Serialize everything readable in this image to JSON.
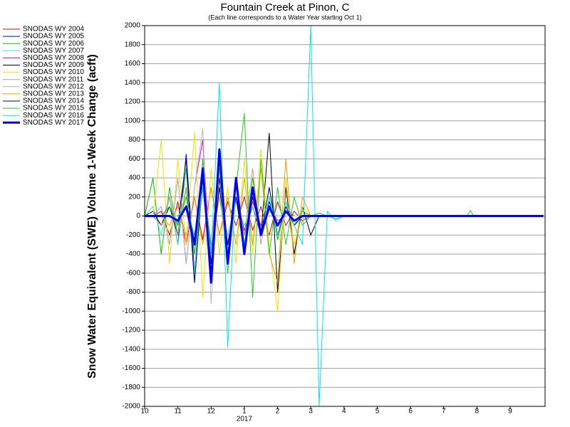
{
  "chart_data": {
    "type": "line",
    "title": "Fountain Creek at Pinon, C",
    "subtitle": "(Each line corresponds to a Water Year starting Oct 1)",
    "y_label": "Snow Water Equivalent (SWE) Volume 1-Week Change (acft)",
    "x_sublabel": "2017",
    "grid": true,
    "legend": "left",
    "x": [
      0,
      0.25,
      0.5,
      0.75,
      1,
      1.25,
      1.5,
      1.75,
      2,
      2.25,
      2.5,
      2.75,
      3,
      3.25,
      3.5,
      3.75,
      4,
      4.25,
      4.5,
      4.75,
      5,
      5.25,
      5.5,
      5.75,
      6,
      7,
      8,
      9,
      9.7,
      9.8,
      9.9,
      12
    ],
    "xlim": [
      0,
      12.05
    ],
    "xticks": [
      {
        "value": 0,
        "label": "10"
      },
      {
        "value": 1,
        "label": "11"
      },
      {
        "value": 2,
        "label": "12"
      },
      {
        "value": 3,
        "label": "1"
      },
      {
        "value": 4,
        "label": "2"
      },
      {
        "value": 5,
        "label": "3"
      },
      {
        "value": 6,
        "label": "4"
      },
      {
        "value": 7,
        "label": "5"
      },
      {
        "value": 8,
        "label": "6"
      },
      {
        "value": 9,
        "label": "7"
      },
      {
        "value": 10,
        "label": "8"
      },
      {
        "value": 11,
        "label": "9"
      }
    ],
    "ylim": [
      -2000,
      2000
    ],
    "yticks": [
      -2000,
      -1800,
      -1600,
      -1400,
      -1200,
      -1000,
      -800,
      -600,
      -400,
      -200,
      0,
      200,
      400,
      600,
      800,
      1000,
      1200,
      1400,
      1600,
      1800,
      2000
    ],
    "series": [
      {
        "name": "SNODAS WY 2004",
        "color": "#e00000",
        "values": [
          0,
          0,
          50,
          -200,
          150,
          -300,
          200,
          -250,
          300,
          -200,
          150,
          -100,
          200,
          -150,
          100,
          -200,
          150,
          -100,
          50,
          -50,
          0,
          0,
          0,
          0,
          0,
          0,
          0,
          0,
          0,
          0,
          0,
          0
        ]
      },
      {
        "name": "SNODAS WY 2005",
        "color": "#0000c0",
        "values": [
          0,
          0,
          -100,
          200,
          -300,
          650,
          -600,
          500,
          -400,
          300,
          -300,
          200,
          -150,
          100,
          -200,
          150,
          -100,
          50,
          0,
          0,
          0,
          0,
          0,
          0,
          0,
          0,
          0,
          0,
          0,
          0,
          0,
          0
        ]
      },
      {
        "name": "SNODAS WY 2006",
        "color": "#00c000",
        "values": [
          0,
          400,
          -400,
          300,
          -200,
          500,
          -700,
          600,
          -500,
          300,
          -400,
          200,
          -300,
          400,
          -200,
          300,
          -250,
          150,
          -100,
          50,
          0,
          0,
          0,
          0,
          0,
          0,
          0,
          0,
          0,
          0,
          0,
          0
        ]
      },
      {
        "name": "SNODAS WY 2007",
        "color": "#40e0e0",
        "values": [
          0,
          100,
          -200,
          200,
          -300,
          300,
          -600,
          450,
          -300,
          200,
          -200,
          150,
          -100,
          100,
          -150,
          50,
          0,
          0,
          0,
          0,
          0,
          0,
          0,
          0,
          0,
          0,
          0,
          0,
          0,
          0,
          0,
          0
        ]
      },
      {
        "name": "SNODAS WY 2008",
        "color": "#e000e0",
        "values": [
          0,
          0,
          100,
          -300,
          400,
          -500,
          300,
          800,
          -600,
          400,
          -300,
          200,
          -200,
          150,
          -100,
          100,
          -50,
          0,
          0,
          0,
          0,
          0,
          0,
          0,
          0,
          0,
          0,
          0,
          0,
          0,
          0,
          0
        ]
      },
      {
        "name": "SNODAS WY 2009",
        "color": "#000000",
        "values": [
          0,
          50,
          -100,
          100,
          -200,
          300,
          -400,
          300,
          -500,
          400,
          -300,
          200,
          -400,
          300,
          -200,
          870,
          -800,
          300,
          -400,
          100,
          -200,
          0,
          0,
          0,
          0,
          0,
          0,
          0,
          0,
          0,
          0,
          0
        ]
      },
      {
        "name": "SNODAS WY 2010",
        "color": "#f0e000",
        "values": [
          0,
          0,
          800,
          -500,
          600,
          -300,
          880,
          -860,
          500,
          -400,
          300,
          -500,
          600,
          -400,
          700,
          -300,
          -1000,
          400,
          -300,
          100,
          0,
          0,
          0,
          0,
          0,
          0,
          0,
          0,
          0,
          0,
          0,
          0
        ]
      },
      {
        "name": "SNODAS WY 2011",
        "color": "#c0a080",
        "values": [
          0,
          0,
          -100,
          200,
          -200,
          300,
          -300,
          400,
          -300,
          200,
          -400,
          300,
          -200,
          500,
          -300,
          200,
          -200,
          100,
          0,
          0,
          0,
          0,
          0,
          0,
          0,
          0,
          0,
          0,
          0,
          0,
          0,
          0
        ]
      },
      {
        "name": "SNODAS WY 2012",
        "color": "#b8b8b8",
        "values": [
          0,
          0,
          100,
          -300,
          400,
          -500,
          300,
          920,
          -920,
          500,
          -400,
          300,
          -300,
          200,
          -200,
          100,
          -100,
          0,
          0,
          0,
          0,
          0,
          0,
          0,
          0,
          0,
          0,
          0,
          0,
          0,
          0,
          0
        ]
      },
      {
        "name": "SNODAS WY 2013",
        "color": "#f0a000",
        "values": [
          0,
          0,
          0,
          -100,
          100,
          -200,
          200,
          -300,
          300,
          -200,
          200,
          -300,
          400,
          -300,
          500,
          -400,
          -700,
          600,
          -500,
          200,
          0,
          0,
          0,
          0,
          0,
          0,
          0,
          0,
          0,
          0,
          0,
          0
        ]
      },
      {
        "name": "SNODAS WY 2014",
        "color": "#000080",
        "values": [
          0,
          0,
          0,
          100,
          -100,
          600,
          -700,
          400,
          -500,
          300,
          -300,
          200,
          -300,
          200,
          -200,
          300,
          -200,
          100,
          -100,
          0,
          0,
          0,
          0,
          0,
          0,
          0,
          0,
          0,
          0,
          0,
          0,
          0
        ]
      },
      {
        "name": "SNODAS WY 2015",
        "color": "#20d020",
        "values": [
          0,
          0,
          0,
          100,
          -100,
          200,
          -400,
          300,
          -300,
          500,
          -600,
          300,
          1080,
          -850,
          600,
          -400,
          300,
          -300,
          200,
          -100,
          0,
          30,
          0,
          -30,
          0,
          0,
          0,
          0,
          0,
          60,
          0,
          0
        ]
      },
      {
        "name": "SNODAS WY 2016",
        "color": "#00e8e8",
        "values": [
          0,
          0,
          0,
          0,
          0,
          100,
          -200,
          300,
          -400,
          1400,
          -1380,
          400,
          -300,
          300,
          -200,
          200,
          -200,
          150,
          -100,
          -300,
          2000,
          -2000,
          50,
          -50,
          0,
          0,
          0,
          0,
          0,
          0,
          0,
          0
        ]
      },
      {
        "name": "SNODAS WY 2017",
        "color": "#0000ff",
        "width": 3,
        "values": [
          0,
          0,
          0,
          0,
          -50,
          100,
          -300,
          500,
          -700,
          700,
          -500,
          400,
          -400,
          300,
          -200,
          100,
          -100,
          50,
          -50,
          0,
          0,
          0,
          0,
          0,
          0,
          0,
          0,
          0,
          0,
          0,
          0,
          0
        ]
      }
    ]
  }
}
